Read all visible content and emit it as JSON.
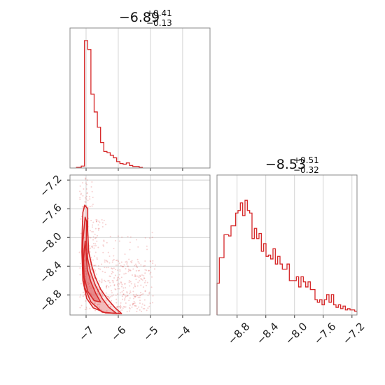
{
  "chart_data": [
    {
      "type": "histogram",
      "panel": "top-left",
      "title": {
        "value": "−6.89",
        "plus": "+0.41",
        "minus": "−0.13"
      },
      "xlim": [
        -7.5,
        -3.15
      ],
      "bins_x": [
        -7.3,
        -7.15,
        -7.05,
        -6.95,
        -6.85,
        -6.75,
        -6.65,
        -6.55,
        -6.45,
        -6.35,
        -6.25,
        -6.15,
        -6.05,
        -5.95,
        -5.85,
        -5.75,
        -5.65,
        -5.55,
        -5.45,
        -5.35
      ],
      "values": [
        0.005,
        0.015,
        1.0,
        0.93,
        0.58,
        0.44,
        0.32,
        0.2,
        0.13,
        0.12,
        0.1,
        0.08,
        0.05,
        0.035,
        0.03,
        0.04,
        0.02,
        0.012,
        0.012,
        0.005
      ],
      "color": "#d62728",
      "grid": true
    },
    {
      "type": "histogram",
      "panel": "bottom-right",
      "title": {
        "value": "−8.53",
        "plus": "+0.51",
        "minus": "−0.32"
      },
      "xlim": [
        -9.08,
        -7.13
      ],
      "x_ticks": [
        "−8.8",
        "−8.4",
        "−8.0",
        "−7.6",
        "−7.2"
      ],
      "x_tick_values": [
        -8.8,
        -8.4,
        -8.0,
        -7.6,
        -7.2
      ],
      "values": [
        0.25,
        0.45,
        0.45,
        0.63,
        0.63,
        0.62,
        0.7,
        0.7,
        0.8,
        0.82,
        0.88,
        0.78,
        0.9,
        0.82,
        0.8,
        0.6,
        0.68,
        0.6,
        0.64,
        0.5,
        0.56,
        0.46,
        0.47,
        0.44,
        0.52,
        0.4,
        0.46,
        0.4,
        0.36,
        0.36,
        0.4,
        0.27,
        0.27,
        0.27,
        0.3,
        0.22,
        0.3,
        0.26,
        0.22,
        0.26,
        0.2,
        0.2,
        0.12,
        0.1,
        0.12,
        0.08,
        0.12,
        0.16,
        0.1,
        0.16,
        0.08,
        0.06,
        0.08,
        0.05,
        0.07,
        0.04,
        0.05,
        0.04,
        0.04,
        0.03
      ],
      "color": "#d62728",
      "grid": true
    },
    {
      "type": "scatter",
      "subtype": "2d-density-contour",
      "panel": "bottom-left",
      "xlim": [
        -7.5,
        -3.15
      ],
      "ylim": [
        -9.08,
        -7.13
      ],
      "x_ticks": [
        "−7",
        "−6",
        "−5",
        "−4"
      ],
      "x_tick_values": [
        -7,
        -6,
        -5,
        -4
      ],
      "y_ticks": [
        "−7.2",
        "−7.6",
        "−8.0",
        "−8.4",
        "−8.8"
      ],
      "y_tick_values": [
        -7.2,
        -7.6,
        -8.0,
        -8.4,
        -8.8
      ],
      "contours": [
        {
          "level": "outer",
          "points": [
            [
              -7.04,
              -7.55
            ],
            [
              -6.95,
              -7.6
            ],
            [
              -6.95,
              -7.9
            ],
            [
              -6.92,
              -8.2
            ],
            [
              -6.82,
              -8.4
            ],
            [
              -6.72,
              -8.55
            ],
            [
              -6.55,
              -8.72
            ],
            [
              -6.35,
              -8.85
            ],
            [
              -6.1,
              -8.98
            ],
            [
              -5.9,
              -9.06
            ],
            [
              -6.4,
              -9.05
            ],
            [
              -6.78,
              -8.98
            ],
            [
              -6.98,
              -8.85
            ],
            [
              -7.1,
              -8.6
            ],
            [
              -7.13,
              -8.2
            ],
            [
              -7.12,
              -7.9
            ],
            [
              -7.1,
              -7.65
            ]
          ]
        },
        {
          "level": "middle",
          "points": [
            [
              -7.03,
              -7.72
            ],
            [
              -6.98,
              -7.78
            ],
            [
              -6.99,
              -8.05
            ],
            [
              -6.95,
              -8.3
            ],
            [
              -6.86,
              -8.48
            ],
            [
              -6.72,
              -8.66
            ],
            [
              -6.5,
              -8.85
            ],
            [
              -6.3,
              -8.97
            ],
            [
              -6.05,
              -9.06
            ],
            [
              -6.5,
              -9.04
            ],
            [
              -6.85,
              -8.9
            ],
            [
              -7.04,
              -8.7
            ],
            [
              -7.1,
              -8.4
            ],
            [
              -7.1,
              -8.05
            ]
          ]
        },
        {
          "level": "inner",
          "points": [
            [
              -7.03,
              -8.05
            ],
            [
              -7.0,
              -8.2
            ],
            [
              -6.96,
              -8.45
            ],
            [
              -6.85,
              -8.62
            ],
            [
              -6.7,
              -8.78
            ],
            [
              -6.55,
              -8.9
            ],
            [
              -6.75,
              -8.88
            ],
            [
              -6.95,
              -8.75
            ],
            [
              -7.06,
              -8.55
            ],
            [
              -7.08,
              -8.3
            ]
          ]
        }
      ],
      "color": "#d62728",
      "grid": true
    }
  ]
}
